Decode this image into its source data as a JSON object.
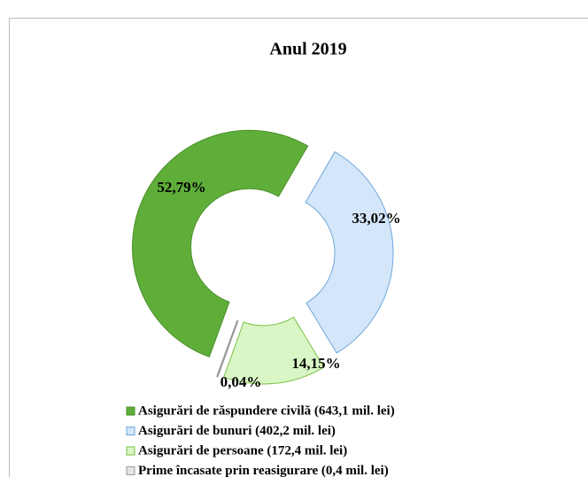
{
  "chart_data": {
    "type": "donut",
    "title": "Anul 2019",
    "categories": [
      "Asigurări de răspundere civilă (643,1 mil. lei)",
      "Asigurări de bunuri (402,2 mil. lei)",
      "Asigurări de persoane (172,4 mil. lei)",
      "Prime încasate prin reasigurare (0,4 mil. lei)"
    ],
    "values": [
      52.79,
      33.02,
      14.15,
      0.04
    ],
    "value_labels": [
      "52,79%",
      "33,02%",
      "14,15%",
      "0,04%"
    ],
    "colors": [
      "#5fae3a",
      "#d3e6fa",
      "#d8f6c6",
      "#e4e4e4"
    ],
    "legend": "bottom"
  }
}
